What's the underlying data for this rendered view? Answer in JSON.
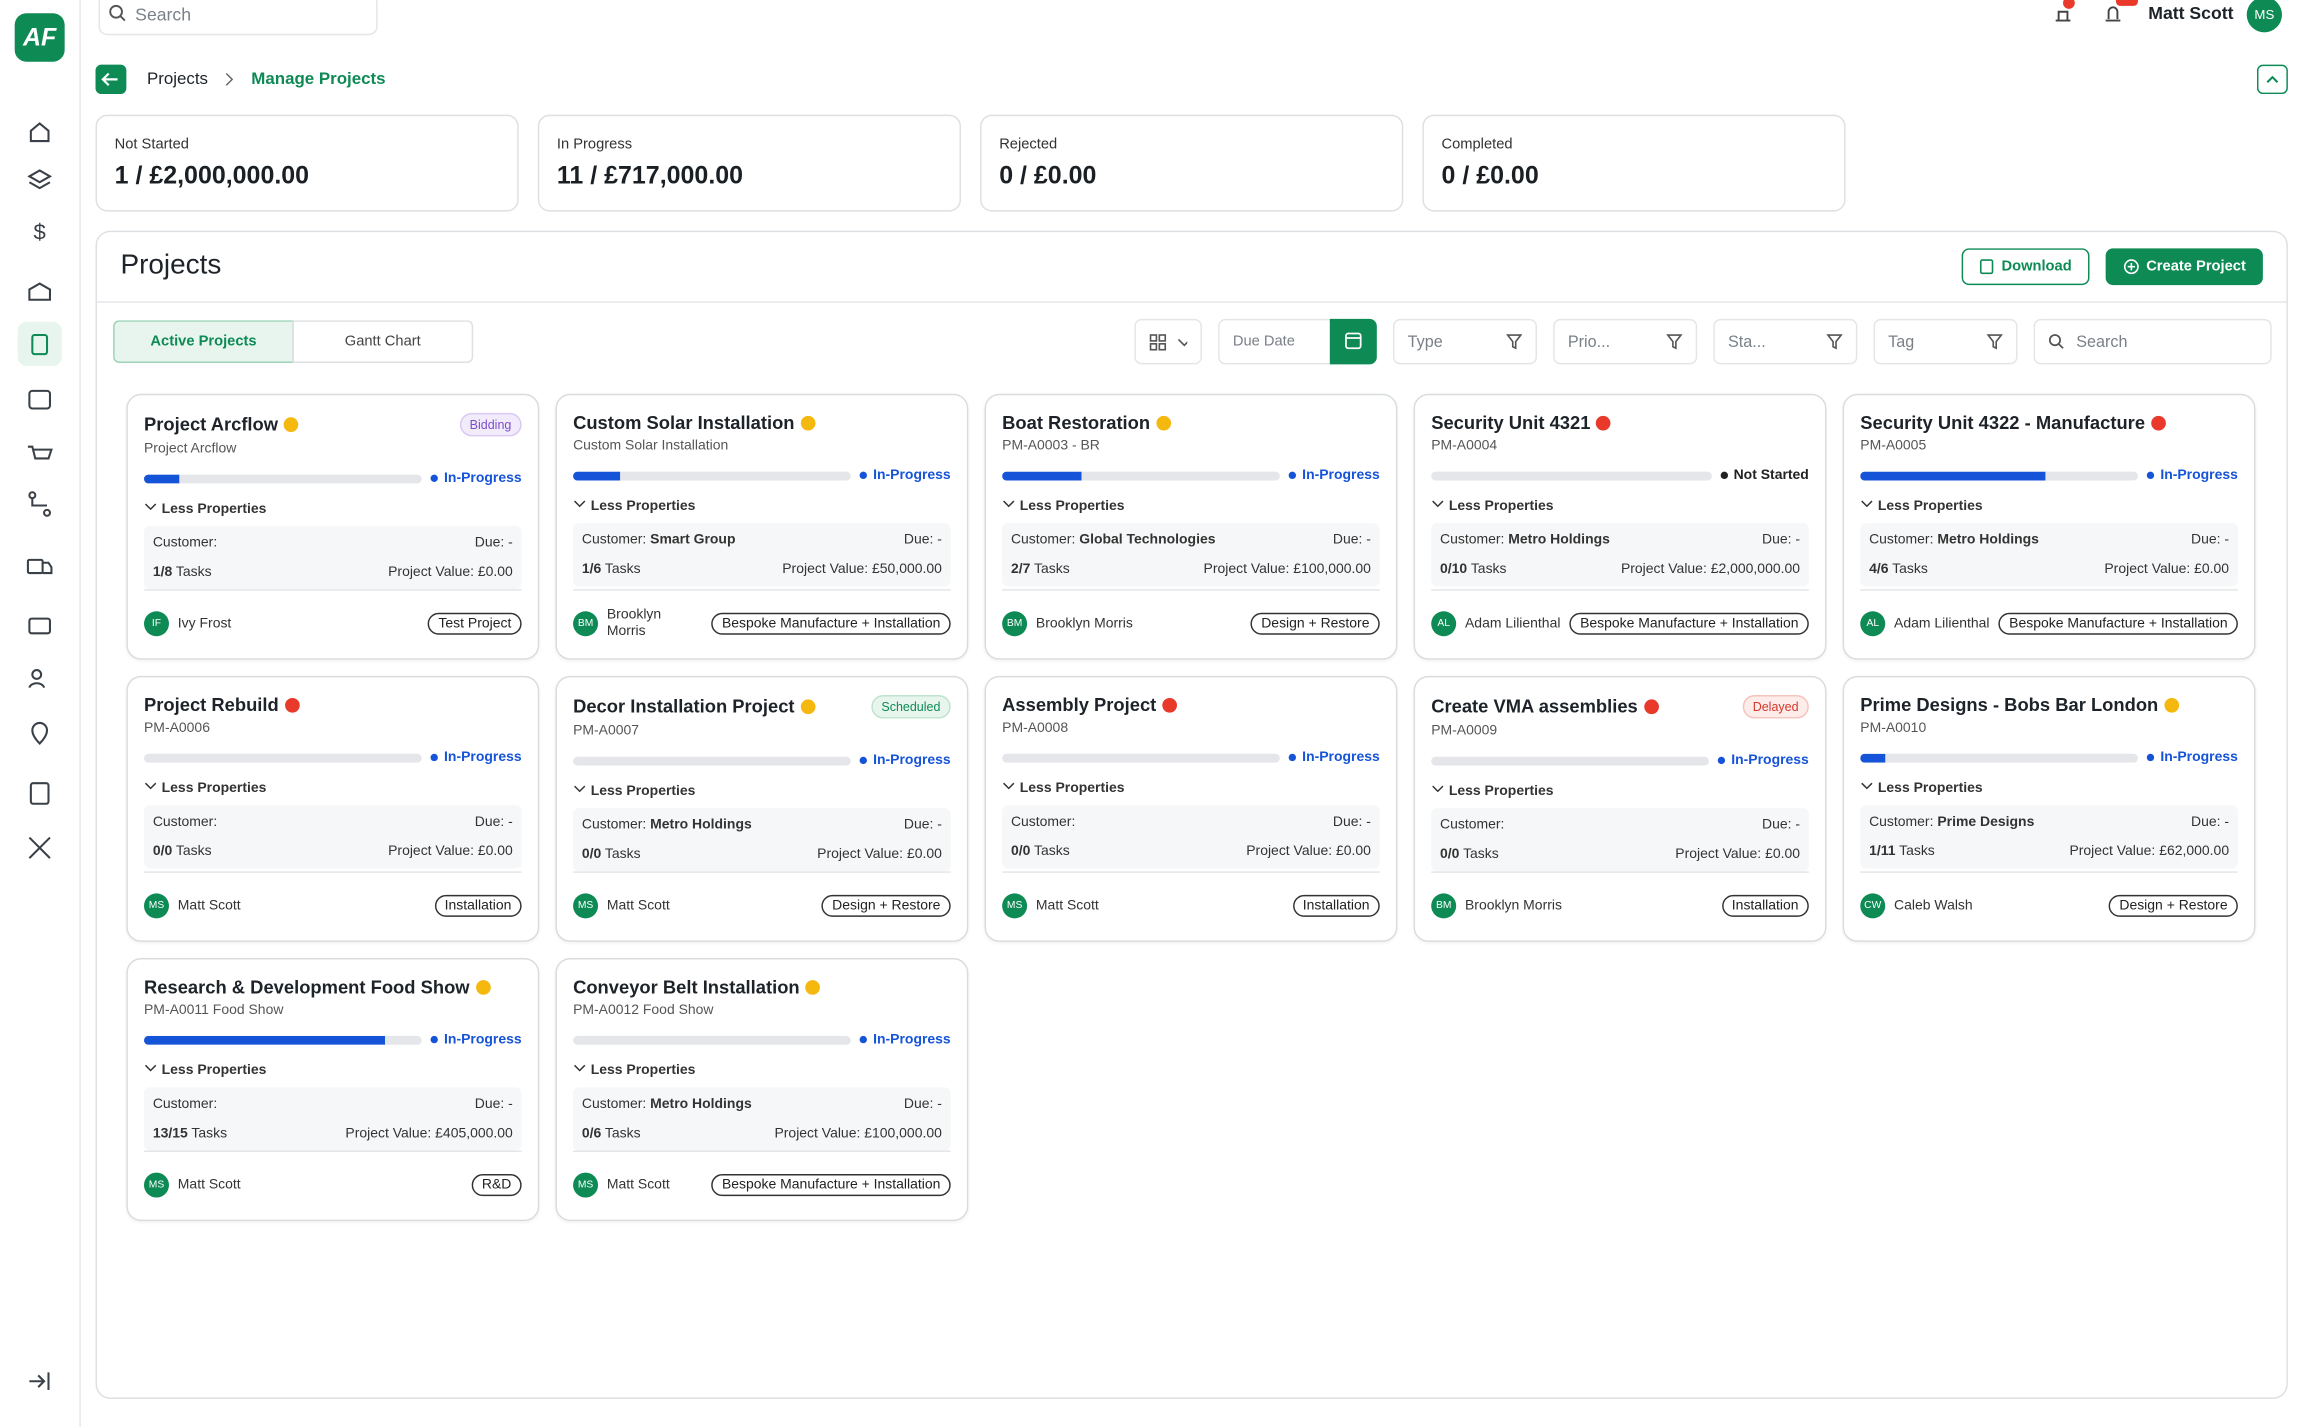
{
  "header": {
    "search_placeholder": "Search",
    "user_name": "Matt Scott",
    "user_initials": "MS"
  },
  "breadcrumb": {
    "parent": "Projects",
    "current": "Manage Projects"
  },
  "stats": [
    {
      "label": "Not Started",
      "value": "1 / £2,000,000.00"
    },
    {
      "label": "In Progress",
      "value": "11 / £717,000.00"
    },
    {
      "label": "Rejected",
      "value": "0 / £0.00"
    },
    {
      "label": "Completed",
      "value": "0 / £0.00"
    }
  ],
  "panel": {
    "title": "Projects",
    "download": "Download",
    "create": "Create Project"
  },
  "tabs": [
    "Active Projects",
    "Gantt Chart"
  ],
  "filters": {
    "due_date": "Due Date",
    "type": "Type",
    "priority": "Prio...",
    "status": "Sta...",
    "tag": "Tag",
    "search": "Search"
  },
  "labels": {
    "less_properties": "Less Properties",
    "customer": "Customer:",
    "due": "Due: -",
    "tasks": "Tasks",
    "project_value": "Project Value:"
  },
  "projects": [
    {
      "title": "Project Arcflow",
      "dot": "#f5b80f",
      "badge": {
        "text": "Bidding",
        "style": "purple"
      },
      "subtitle": "Project Arcflow",
      "status": "In-Progress",
      "customer": null,
      "tasks": "1/8",
      "value": "£0.00",
      "initials": "IF",
      "person": "Ivy Frost",
      "tag": "Test Project"
    },
    {
      "title": "Custom Solar Installation",
      "dot": "#f5b80f",
      "badge": null,
      "subtitle": "Custom Solar Installation",
      "status": "In-Progress",
      "customer": "Smart Group",
      "tasks": "1/6",
      "value": "£50,000.00",
      "initials": "BM",
      "person": "Brooklyn Morris",
      "tag": "Bespoke Manufacture + Installation"
    },
    {
      "title": "Boat Restoration",
      "dot": "#f5b80f",
      "badge": null,
      "subtitle": "PM-A0003 - BR",
      "status": "In-Progress",
      "customer": "Global Technologies",
      "tasks": "2/7",
      "value": "£100,000.00",
      "initials": "BM",
      "person": "Brooklyn Morris",
      "tag": "Design + Restore"
    },
    {
      "title": "Security Unit 4321",
      "dot": "#e8392b",
      "badge": null,
      "subtitle": "PM-A0004",
      "status": "Not Started",
      "customer": "Metro Holdings",
      "tasks": "0/10",
      "value": "£2,000,000.00",
      "initials": "AL",
      "person": "Adam Lilienthal",
      "tag": "Bespoke Manufacture + Installation"
    },
    {
      "title": "Security Unit 4322 - Manufacture",
      "dot": "#e8392b",
      "badge": null,
      "subtitle": "PM-A0005",
      "status": "In-Progress",
      "customer": "Metro Holdings",
      "tasks": "4/6",
      "value": "£0.00",
      "initials": "AL",
      "person": "Adam Lilienthal",
      "tag": "Bespoke Manufacture + Installation"
    },
    {
      "title": "Project Rebuild",
      "dot": "#e8392b",
      "badge": null,
      "subtitle": "PM-A0006",
      "status": "In-Progress",
      "customer": null,
      "tasks": "0/0",
      "value": "£0.00",
      "initials": "MS",
      "person": "Matt Scott",
      "tag": "Installation"
    },
    {
      "title": "Decor Installation Project",
      "dot": "#f5b80f",
      "badge": {
        "text": "Scheduled",
        "style": "green"
      },
      "subtitle": "PM-A0007",
      "status": "In-Progress",
      "customer": "Metro Holdings",
      "tasks": "0/0",
      "value": "£0.00",
      "initials": "MS",
      "person": "Matt Scott",
      "tag": "Design + Restore"
    },
    {
      "title": "Assembly Project",
      "dot": "#e8392b",
      "badge": null,
      "subtitle": "PM-A0008",
      "status": "In-Progress",
      "customer": null,
      "tasks": "0/0",
      "value": "£0.00",
      "initials": "MS",
      "person": "Matt Scott",
      "tag": "Installation"
    },
    {
      "title": "Create VMA assemblies",
      "dot": "#e8392b",
      "badge": {
        "text": "Delayed",
        "style": "red"
      },
      "subtitle": "PM-A0009",
      "status": "In-Progress",
      "customer": null,
      "tasks": "0/0",
      "value": "£0.00",
      "initials": "BM",
      "person": "Brooklyn Morris",
      "tag": "Installation"
    },
    {
      "title": "Prime Designs - Bobs Bar London",
      "dot": "#f5b80f",
      "badge": null,
      "subtitle": "PM-A0010",
      "status": "In-Progress",
      "customer": "Prime Designs",
      "tasks": "1/11",
      "value": "£62,000.00",
      "initials": "CW",
      "person": "Caleb Walsh",
      "tag": "Design + Restore"
    },
    {
      "title": "Research & Development Food Show",
      "dot": "#f5b80f",
      "badge": null,
      "subtitle": "PM-A0011 Food Show",
      "status": "In-Progress",
      "customer": null,
      "tasks": "13/15",
      "value": "£405,000.00",
      "initials": "MS",
      "person": "Matt Scott",
      "tag": "R&D"
    },
    {
      "title": "Conveyor Belt Installation",
      "dot": "#f5b80f",
      "badge": null,
      "subtitle": "PM-A0012 Food Show",
      "status": "In-Progress",
      "customer": "Metro Holdings",
      "tasks": "0/6",
      "value": "£100,000.00",
      "initials": "MS",
      "person": "Matt Scott",
      "tag": "Bespoke Manufacture + Installation"
    }
  ]
}
